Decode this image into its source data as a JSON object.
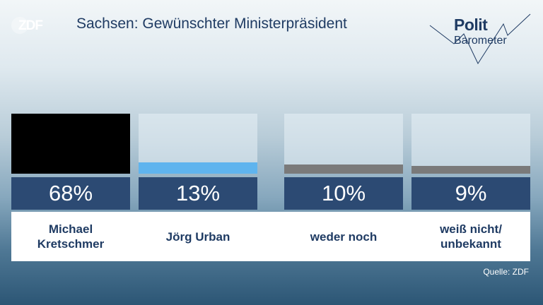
{
  "header": {
    "brand": "ZDF",
    "title": "Sachsen: Gewünschter Ministerpräsident",
    "logo_line1": "Polit",
    "logo_line2": "Barometer"
  },
  "source": "Quelle: ZDF",
  "chart_data": {
    "type": "bar",
    "title": "Sachsen: Gewünschter Ministerpräsident",
    "categories": [
      "Michael Kretschmer",
      "Jörg Urban",
      "weder noch",
      "weiß nicht/ unbekannt"
    ],
    "values": [
      68,
      13,
      10,
      9
    ],
    "value_labels": [
      "68%",
      "13%",
      "10%",
      "9%"
    ],
    "colors": [
      "#000000",
      "#5fb4ee",
      "#7a7a7a",
      "#7a7a7a"
    ],
    "ylim": [
      0,
      68
    ]
  }
}
